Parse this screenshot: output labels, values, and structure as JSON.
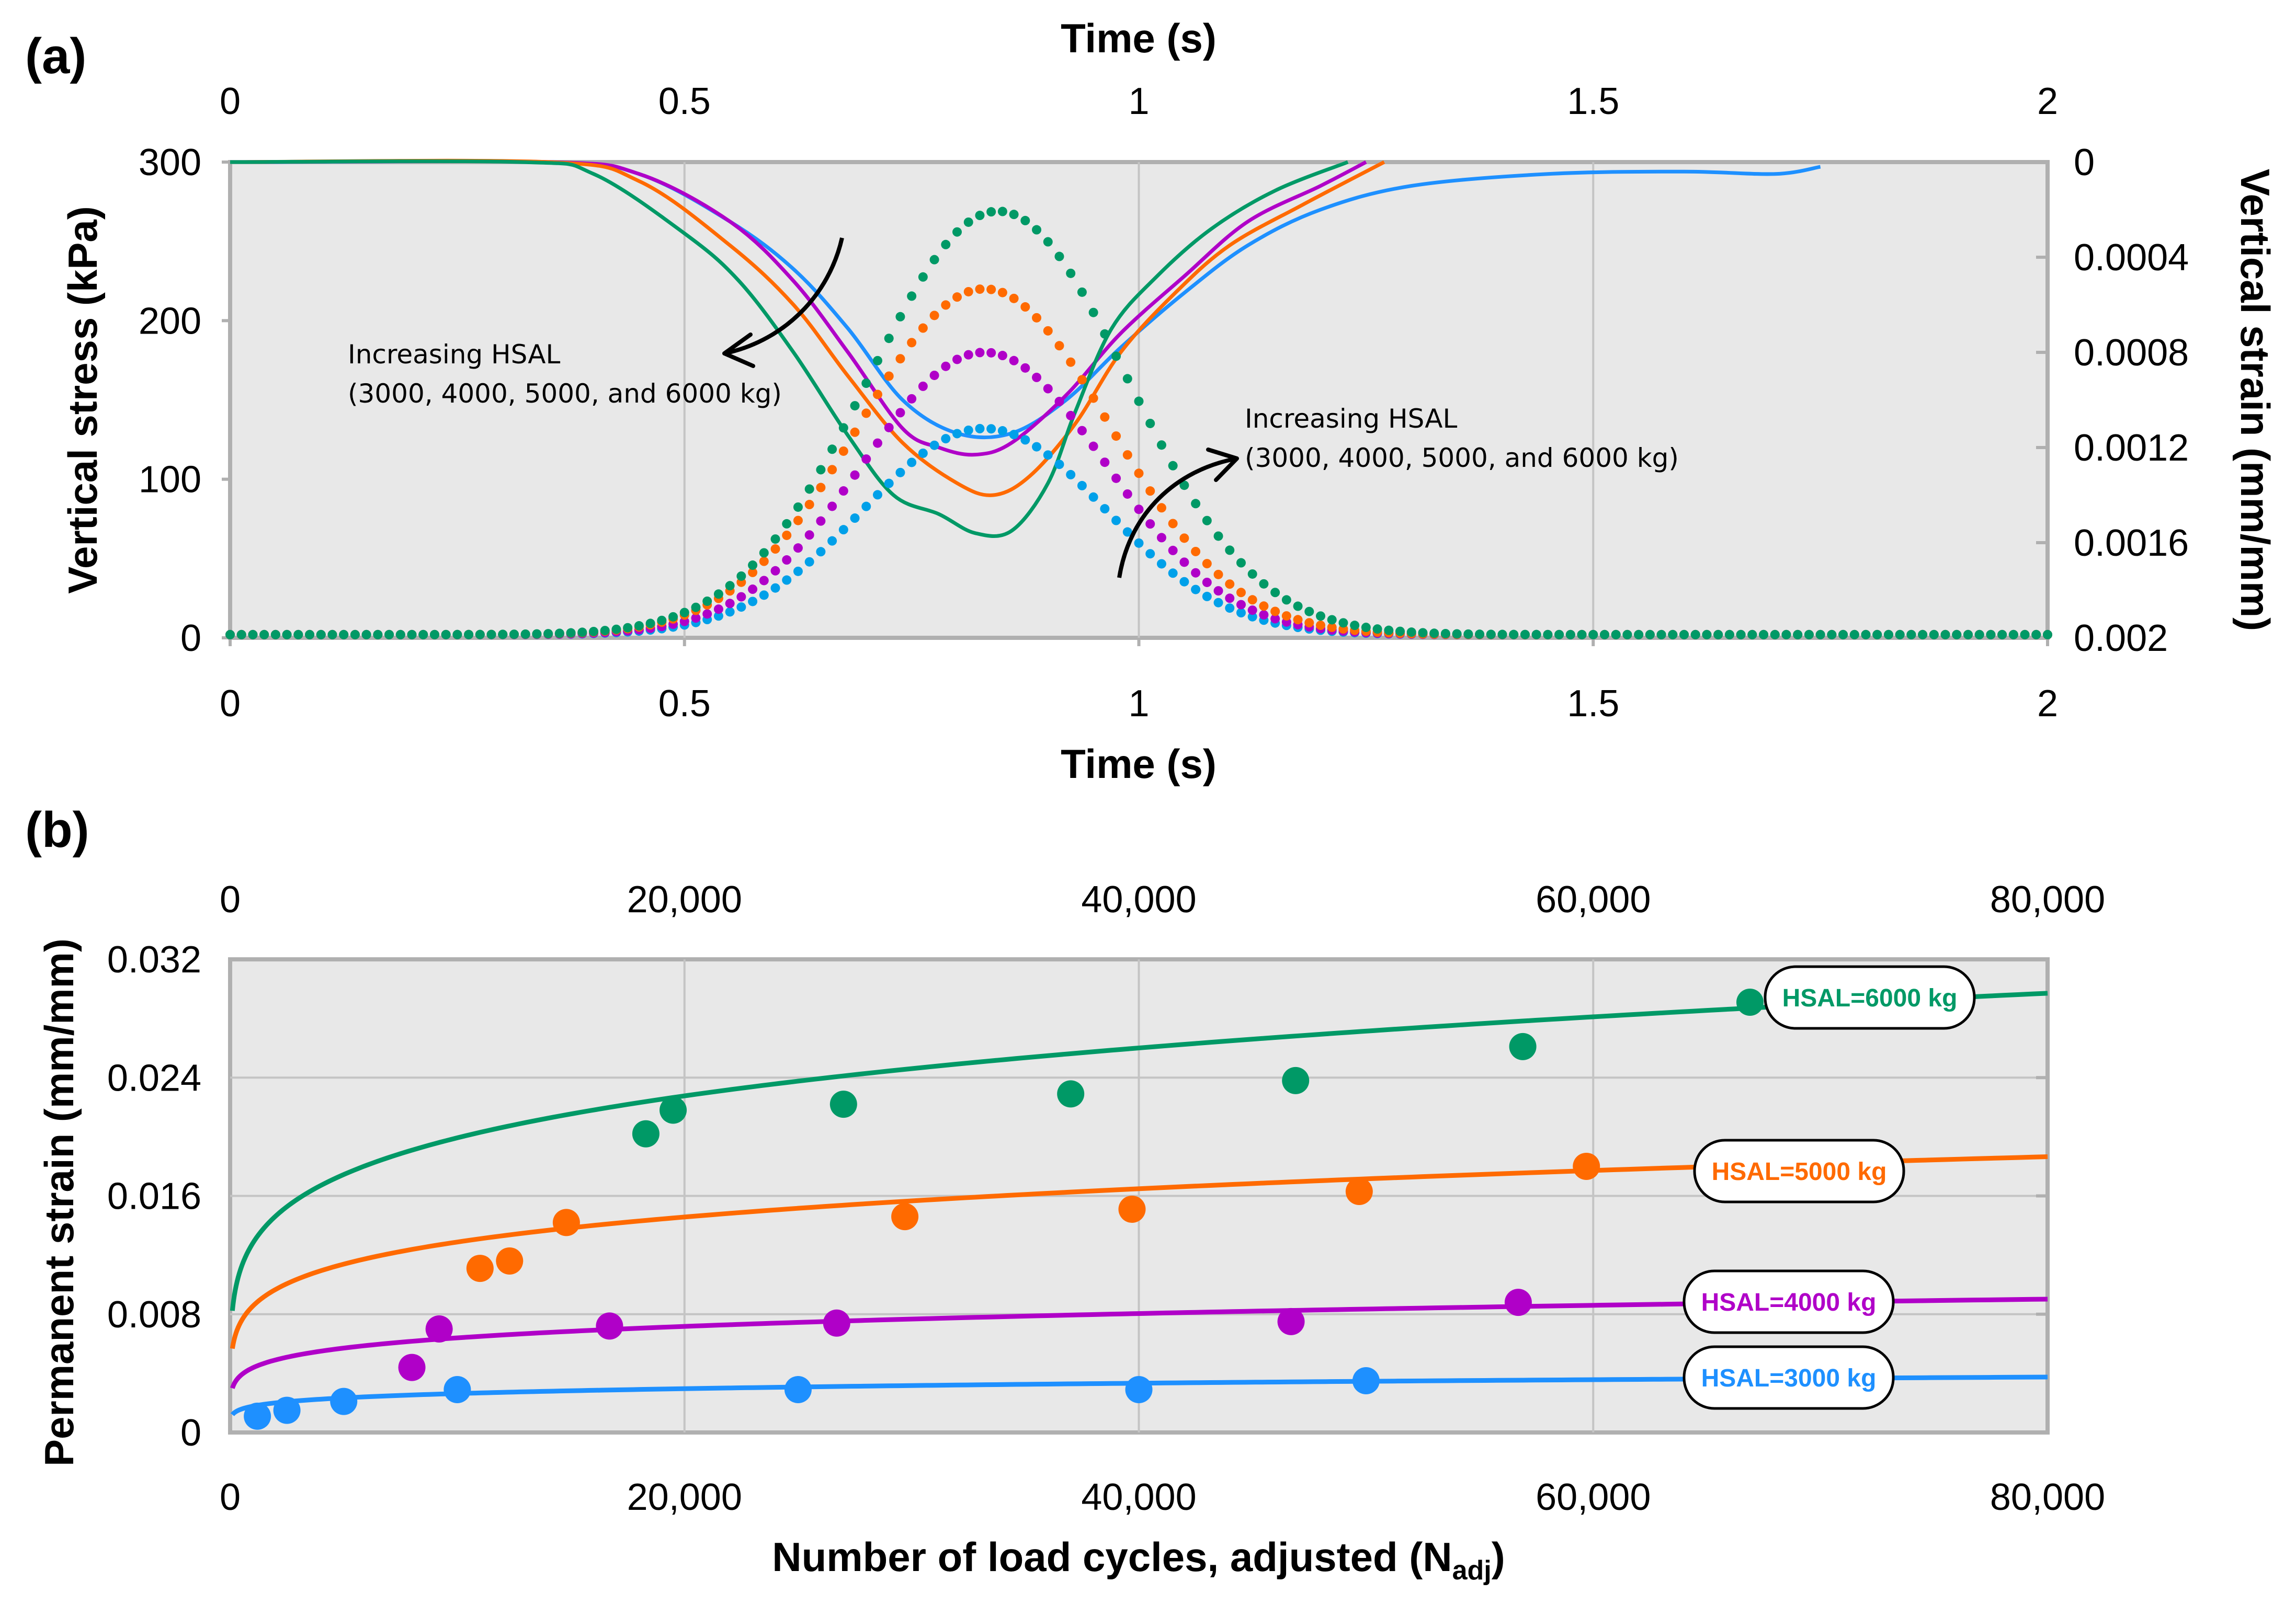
{
  "figure": {
    "panel_a_label": "(a)",
    "panel_b_label": "(b)"
  },
  "chart_data": [
    {
      "id": "a",
      "type": "line",
      "title": "",
      "xlabel": "Time (s)",
      "xlabel_top": "Time (s)",
      "ylabel": "Vertical stress (kPa)",
      "y2label": "Vertical strain (mm/mm)",
      "xlim": [
        0,
        2
      ],
      "ylim": [
        0,
        300
      ],
      "y2lim": [
        0,
        0.002
      ],
      "y2_inverted": true,
      "grid": true,
      "xticks": [
        "0",
        "0.5",
        "1",
        "1.5",
        "2"
      ],
      "yticks": [
        "0",
        "100",
        "200",
        "300"
      ],
      "y2ticks": [
        "0",
        "0.0004",
        "0.0008",
        "0.0012",
        "0.0016",
        "0.002"
      ],
      "annotations": [
        {
          "id": "strain",
          "line1": "Increasing HSAL",
          "line2": "(3000, 4000, 5000, and 6000 kg)"
        },
        {
          "id": "stress",
          "line1": "Increasing HSAL",
          "line2": "(3000, 4000, 5000, and 6000 kg)"
        }
      ],
      "stress_series": [
        {
          "name": "3000 kg",
          "color": "#00A0E9",
          "style": "dots",
          "peak": 130,
          "center": 0.83,
          "width": 0.155
        },
        {
          "name": "4000 kg",
          "color": "#B000C8",
          "style": "dots",
          "peak": 178,
          "center": 0.83,
          "width": 0.155
        },
        {
          "name": "5000 kg",
          "color": "#FF6A00",
          "style": "dots",
          "peak": 218,
          "center": 0.83,
          "width": 0.16
        },
        {
          "name": "6000 kg",
          "color": "#009966",
          "style": "dots",
          "peak": 267,
          "center": 0.845,
          "width": 0.165
        }
      ],
      "strain_series": [
        {
          "name": "3000 kg",
          "color": "#1E90FF",
          "style": "line",
          "points": [
            [
              0.03,
              0.0
            ],
            [
              0.35,
              0.0
            ],
            [
              0.45,
              5e-05
            ],
            [
              0.55,
              0.00025
            ],
            [
              0.62,
              0.00045
            ],
            [
              0.68,
              0.0007
            ],
            [
              0.74,
              0.001
            ],
            [
              0.8,
              0.00114
            ],
            [
              0.86,
              0.00114
            ],
            [
              0.92,
              0.001
            ],
            [
              0.98,
              0.00078
            ],
            [
              1.05,
              0.00055
            ],
            [
              1.12,
              0.00035
            ],
            [
              1.2,
              0.0002
            ],
            [
              1.3,
              0.0001
            ],
            [
              1.45,
              5e-05
            ],
            [
              1.6,
              4e-05
            ],
            [
              1.7,
              5e-05
            ],
            [
              1.75,
              2e-05
            ]
          ]
        },
        {
          "name": "4000 kg",
          "color": "#B000C8",
          "style": "line",
          "points": [
            [
              0.0,
              0.0
            ],
            [
              0.35,
              0.0
            ],
            [
              0.45,
              5e-05
            ],
            [
              0.55,
              0.00025
            ],
            [
              0.62,
              0.0005
            ],
            [
              0.68,
              0.0008
            ],
            [
              0.74,
              0.00112
            ],
            [
              0.78,
              0.0012
            ],
            [
              0.82,
              0.00123
            ],
            [
              0.86,
              0.00118
            ],
            [
              0.92,
              0.00098
            ],
            [
              0.98,
              0.00072
            ],
            [
              1.05,
              0.00048
            ],
            [
              1.12,
              0.00025
            ],
            [
              1.2,
              0.0001
            ],
            [
              1.25,
              0.0
            ]
          ]
        },
        {
          "name": "5000 kg",
          "color": "#FF6A00",
          "style": "line",
          "points": [
            [
              0.0,
              0.0
            ],
            [
              0.35,
              0.0
            ],
            [
              0.45,
              8e-05
            ],
            [
              0.55,
              0.00035
            ],
            [
              0.62,
              0.0006
            ],
            [
              0.68,
              0.0009
            ],
            [
              0.74,
              0.00118
            ],
            [
              0.8,
              0.00135
            ],
            [
              0.84,
              0.0014
            ],
            [
              0.88,
              0.00132
            ],
            [
              0.93,
              0.0011
            ],
            [
              0.98,
              0.0008
            ],
            [
              1.04,
              0.00055
            ],
            [
              1.1,
              0.00035
            ],
            [
              1.18,
              0.00018
            ],
            [
              1.27,
              0.0
            ]
          ]
        },
        {
          "name": "6000 kg",
          "color": "#009966",
          "style": "line",
          "points": [
            [
              0.0,
              0.0
            ],
            [
              0.32,
              0.0
            ],
            [
              0.4,
              5e-05
            ],
            [
              0.5,
              0.0003
            ],
            [
              0.56,
              0.0005
            ],
            [
              0.62,
              0.0008
            ],
            [
              0.68,
              0.00115
            ],
            [
              0.73,
              0.0014
            ],
            [
              0.78,
              0.00148
            ],
            [
              0.82,
              0.00156
            ],
            [
              0.86,
              0.00155
            ],
            [
              0.9,
              0.00135
            ],
            [
              0.93,
              0.00105
            ],
            [
              0.97,
              0.0007
            ],
            [
              1.02,
              0.00048
            ],
            [
              1.08,
              0.00028
            ],
            [
              1.15,
              0.00012
            ],
            [
              1.23,
              0.0
            ]
          ]
        }
      ]
    },
    {
      "id": "b",
      "type": "scatter",
      "title": "",
      "xlabel": "Number of load cycles, adjusted (N",
      "xlabel_sub": "adj",
      "xlabel_close": ")",
      "ylabel": "Permanent strain (mm/mm)",
      "xlim": [
        0,
        80000
      ],
      "ylim": [
        0,
        0.032
      ],
      "grid": true,
      "xticks": [
        "0",
        "20,000",
        "40,000",
        "60,000",
        "80,000"
      ],
      "yticks": [
        "0",
        "0.008",
        "0.016",
        "0.024",
        "0.032"
      ],
      "series": [
        {
          "name": "HSAL=3000 kg",
          "color": "#1E90FF",
          "fit": {
            "a": 0.00055,
            "b": 0.17
          },
          "points": [
            [
              1200,
              0.0011
            ],
            [
              2500,
              0.0015
            ],
            [
              5000,
              0.0021
            ],
            [
              10000,
              0.0029
            ],
            [
              25000,
              0.0029
            ],
            [
              40000,
              0.0029
            ],
            [
              50000,
              0.0035
            ]
          ]
        },
        {
          "name": "HSAL=4000 kg",
          "color": "#B000C8",
          "fit": {
            "a": 0.0014,
            "b": 0.165
          },
          "points": [
            [
              8000,
              0.0044
            ],
            [
              9200,
              0.007
            ],
            [
              16700,
              0.0072
            ],
            [
              26700,
              0.0074
            ],
            [
              46700,
              0.0075
            ],
            [
              56700,
              0.0088
            ]
          ]
        },
        {
          "name": "HSAL=5000 kg",
          "color": "#FF6A00",
          "fit": {
            "a": 0.0025,
            "b": 0.178
          },
          "points": [
            [
              11000,
              0.0111
            ],
            [
              12300,
              0.0116
            ],
            [
              14800,
              0.0142
            ],
            [
              29700,
              0.0146
            ],
            [
              39700,
              0.0151
            ],
            [
              49700,
              0.0163
            ],
            [
              59700,
              0.018
            ]
          ]
        },
        {
          "name": "HSAL=6000 kg",
          "color": "#009966",
          "fit": {
            "a": 0.0034,
            "b": 0.192
          },
          "points": [
            [
              18300,
              0.0202
            ],
            [
              19500,
              0.0218
            ],
            [
              27000,
              0.0222
            ],
            [
              37000,
              0.0229
            ],
            [
              46900,
              0.0238
            ],
            [
              56900,
              0.0261
            ],
            [
              66900,
              0.0291
            ]
          ]
        }
      ]
    }
  ]
}
